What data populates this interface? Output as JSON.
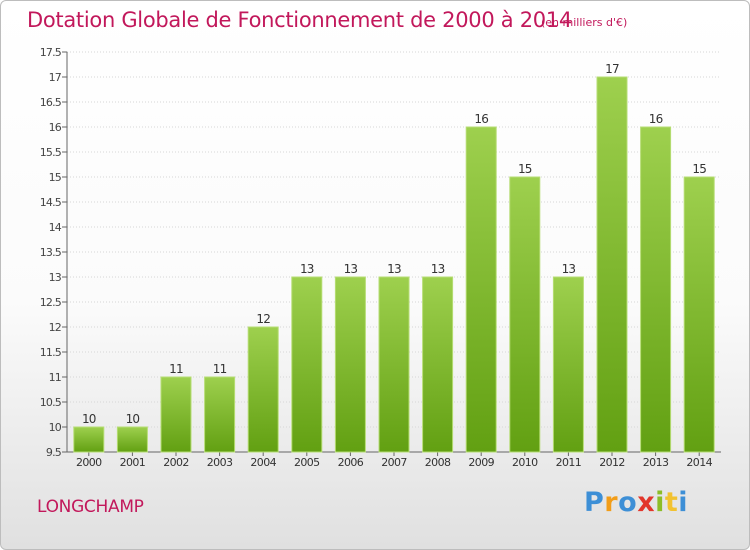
{
  "header": {
    "title": "Dotation Globale de Fonctionnement de 2000 à 2014",
    "subtitle": "(en milliers d'€)"
  },
  "footer": {
    "commune": "LONGCHAMP",
    "logo_text": "Proxiti"
  },
  "colors": {
    "title": "#c2185b",
    "bar_light": "#9ed04e",
    "bar_dark": "#62a012",
    "gridline": "#d6d6d6"
  },
  "chart_data": {
    "type": "bar",
    "title": "Dotation Globale de Fonctionnement de 2000 à 2014",
    "subtitle": "(en milliers d'€)",
    "xlabel": "",
    "ylabel": "",
    "categories": [
      "2000",
      "2001",
      "2002",
      "2003",
      "2004",
      "2005",
      "2006",
      "2007",
      "2008",
      "2009",
      "2010",
      "2011",
      "2012",
      "2013",
      "2014"
    ],
    "values": [
      10,
      10,
      11,
      11,
      12,
      13,
      13,
      13,
      13,
      16,
      15,
      13,
      17,
      16,
      15
    ],
    "data_labels": [
      "10",
      "10",
      "11",
      "11",
      "12",
      "13",
      "13",
      "13",
      "13",
      "16",
      "15",
      "13",
      "17",
      "16",
      "15"
    ],
    "ylim": [
      9.5,
      17.5
    ],
    "yticks": [
      9.5,
      10,
      10.5,
      11,
      11.5,
      12,
      12.5,
      13,
      13.5,
      14,
      14.5,
      15,
      15.5,
      16,
      16.5,
      17,
      17.5
    ],
    "ytick_labels": [
      "9.5",
      "10",
      "10.5",
      "11",
      "11.5",
      "12",
      "12.5",
      "13",
      "13.5",
      "14",
      "14.5",
      "15",
      "15.5",
      "16",
      "16.5",
      "17",
      "17.5"
    ],
    "grid": true,
    "legend": false
  }
}
